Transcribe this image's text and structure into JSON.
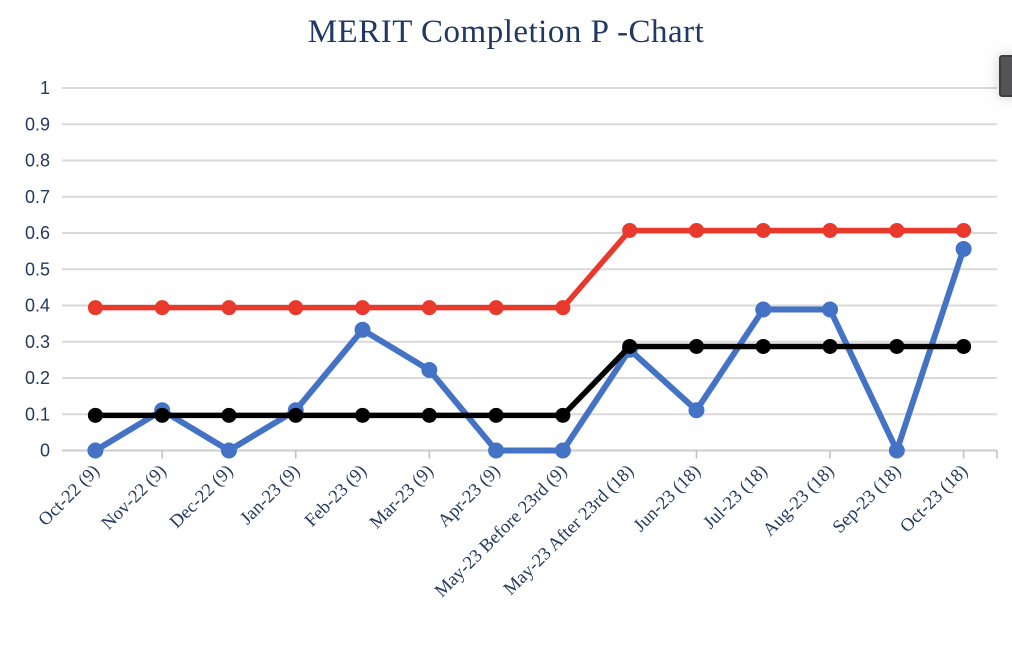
{
  "title": {
    "text": "MERIT Completion P -Chart"
  },
  "chart_data": {
    "type": "line",
    "title": "MERIT Completion P -Chart",
    "xlabel": "",
    "ylabel": "",
    "ylim": [
      0,
      1
    ],
    "ytick_step": 0.1,
    "ytick_labels": [
      "1",
      "0.9",
      "0.8",
      "0.7",
      "0.6",
      "0.5",
      "0.4",
      "0.3",
      "0.2",
      "0.1",
      "0"
    ],
    "grid": true,
    "legend_position": "none",
    "categories": [
      "Oct-22 (9)",
      "Nov-22 (9)",
      "Dec-22 (9)",
      "Jan-23 (9)",
      "Feb-23 (9)",
      "Mar-23 (9)",
      "Apr-23 (9)",
      "May-23 Before 23rd (9)",
      "May-23 After 23rd (18)",
      "Jun-23 (18)",
      "Jul-23 (18)",
      "Aug-23 (18)",
      "Sep-23 (18)",
      "Oct-23 (18)"
    ],
    "series": [
      {
        "name": "blue-observed-proportion",
        "color": "#4472C4",
        "values": [
          0,
          0.111,
          0,
          0.111,
          0.333,
          0.222,
          0,
          0,
          0.278,
          0.111,
          0.389,
          0.389,
          0,
          0.556
        ]
      },
      {
        "name": "black-center-line",
        "color": "#000000",
        "values": [
          0.097,
          0.097,
          0.097,
          0.097,
          0.097,
          0.097,
          0.097,
          0.097,
          0.287,
          0.287,
          0.287,
          0.287,
          0.287,
          0.287
        ]
      },
      {
        "name": "red-upper-control-limit",
        "color": "#E8392C",
        "values": [
          0.394,
          0.394,
          0.394,
          0.394,
          0.394,
          0.394,
          0.394,
          0.394,
          0.607,
          0.607,
          0.607,
          0.607,
          0.607,
          0.607
        ]
      }
    ],
    "x_tick_category_indices": [
      1,
      3,
      5,
      7,
      9,
      11,
      13
    ]
  },
  "colors": {
    "title_text": "#1F3864",
    "axis_label_text": "#24395E",
    "gridline": "#D9D9D9",
    "baseline": "#CCCCCC",
    "tick": "#BFBFBF",
    "scrollbar_thumb": "#545456"
  }
}
